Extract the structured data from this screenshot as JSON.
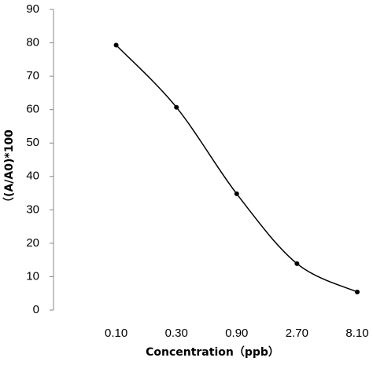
{
  "chart_data": {
    "type": "line",
    "categories": [
      "0.10",
      "0.30",
      "0.90",
      "2.70",
      "8.10"
    ],
    "series": [
      {
        "name": "(A/A0)*100",
        "color": "#000000",
        "values": [
          79.3,
          60.7,
          34.8,
          13.9,
          5.4
        ]
      }
    ],
    "ylim": [
      0,
      90
    ],
    "yticks": [
      0,
      10,
      20,
      30,
      40,
      50,
      60,
      70,
      80,
      90
    ],
    "x_label": "Concentration（ppb）",
    "y_label": "（(A/A0)*100",
    "smooth": true
  }
}
